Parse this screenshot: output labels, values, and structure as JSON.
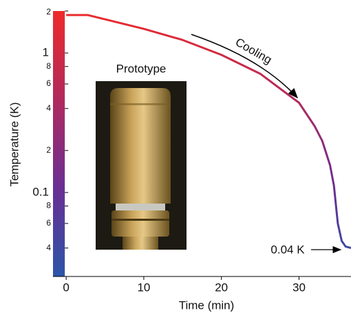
{
  "chart_data": {
    "type": "line",
    "x_label": "Time (min)",
    "y_label": "Temperature (K)",
    "x": [
      0,
      2.8,
      10,
      15,
      20,
      25,
      30,
      32,
      33,
      34,
      34.5,
      35,
      35.5,
      36,
      36.7
    ],
    "values": [
      1.87,
      1.87,
      1.49,
      1.24,
      0.97,
      0.71,
      0.44,
      0.3,
      0.234,
      0.157,
      0.112,
      0.06,
      0.045,
      0.041,
      0.04
    ],
    "colormap": [
      "#ee2a2a",
      "#b02a5e",
      "#6a2e94",
      "#2c55a8"
    ],
    "log_y": true,
    "xlim": [
      -1.7,
      36.7
    ],
    "ylim": [
      0.025,
      2
    ],
    "xticks": [
      0,
      10,
      20,
      30
    ],
    "yticks": [
      2,
      1,
      {
        "value": 0.8,
        "label": "8"
      },
      {
        "value": 0.6,
        "label": "6"
      },
      {
        "value": 0.4,
        "label": "4"
      },
      {
        "value": 0.2,
        "label": "2"
      },
      0.1,
      {
        "value": 0.08,
        "label": "8"
      },
      {
        "value": 0.06,
        "label": "6"
      },
      {
        "value": 0.04,
        "label": "4"
      }
    ],
    "annotations": [
      "Cooling",
      "0.04 K"
    ],
    "inset_label": "Prototype"
  }
}
